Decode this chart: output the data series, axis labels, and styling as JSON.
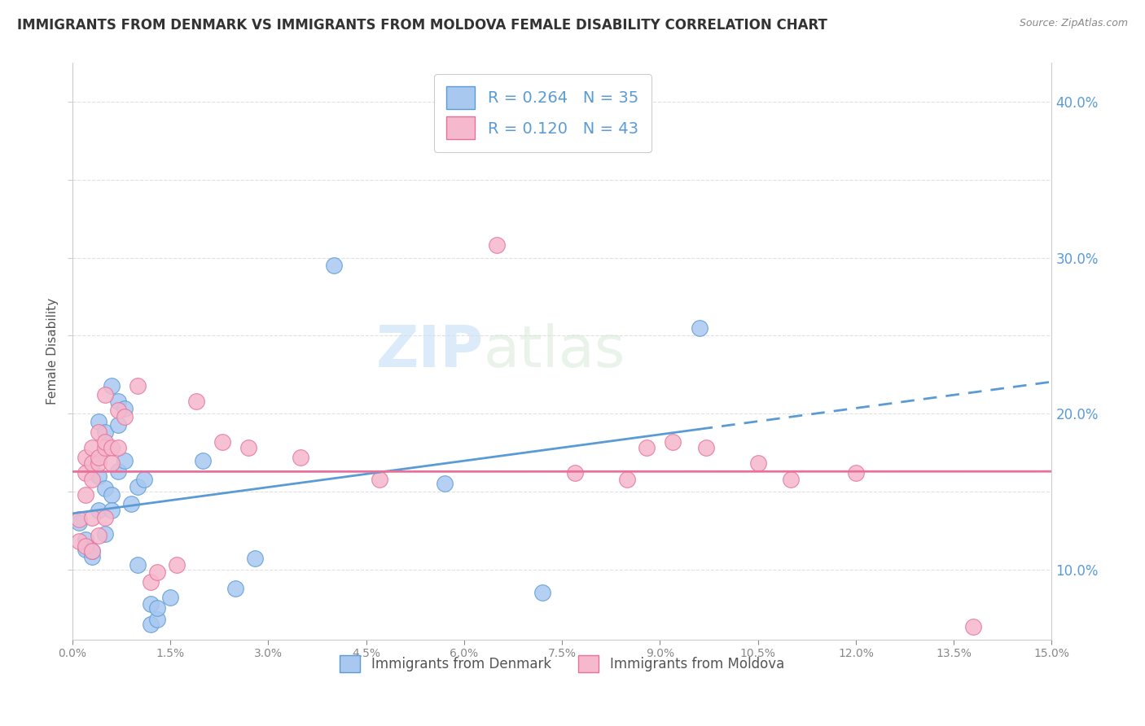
{
  "title": "IMMIGRANTS FROM DENMARK VS IMMIGRANTS FROM MOLDOVA FEMALE DISABILITY CORRELATION CHART",
  "source": "Source: ZipAtlas.com",
  "ylabel": "Female Disability",
  "xlim": [
    0.0,
    0.15
  ],
  "ylim": [
    0.055,
    0.425
  ],
  "denmark_scatter": [
    [
      0.001,
      0.13
    ],
    [
      0.002,
      0.119
    ],
    [
      0.002,
      0.113
    ],
    [
      0.003,
      0.108
    ],
    [
      0.003,
      0.112
    ],
    [
      0.004,
      0.195
    ],
    [
      0.004,
      0.138
    ],
    [
      0.004,
      0.16
    ],
    [
      0.005,
      0.123
    ],
    [
      0.005,
      0.152
    ],
    [
      0.005,
      0.188
    ],
    [
      0.006,
      0.218
    ],
    [
      0.006,
      0.148
    ],
    [
      0.006,
      0.138
    ],
    [
      0.007,
      0.208
    ],
    [
      0.007,
      0.193
    ],
    [
      0.007,
      0.163
    ],
    [
      0.008,
      0.203
    ],
    [
      0.008,
      0.17
    ],
    [
      0.009,
      0.142
    ],
    [
      0.01,
      0.153
    ],
    [
      0.01,
      0.103
    ],
    [
      0.011,
      0.158
    ],
    [
      0.012,
      0.078
    ],
    [
      0.012,
      0.065
    ],
    [
      0.013,
      0.068
    ],
    [
      0.013,
      0.075
    ],
    [
      0.015,
      0.082
    ],
    [
      0.02,
      0.17
    ],
    [
      0.025,
      0.088
    ],
    [
      0.028,
      0.107
    ],
    [
      0.04,
      0.295
    ],
    [
      0.057,
      0.155
    ],
    [
      0.072,
      0.085
    ],
    [
      0.096,
      0.255
    ]
  ],
  "moldova_scatter": [
    [
      0.001,
      0.118
    ],
    [
      0.001,
      0.132
    ],
    [
      0.002,
      0.115
    ],
    [
      0.002,
      0.148
    ],
    [
      0.002,
      0.162
    ],
    [
      0.002,
      0.172
    ],
    [
      0.003,
      0.112
    ],
    [
      0.003,
      0.133
    ],
    [
      0.003,
      0.158
    ],
    [
      0.003,
      0.178
    ],
    [
      0.003,
      0.168
    ],
    [
      0.004,
      0.122
    ],
    [
      0.004,
      0.168
    ],
    [
      0.004,
      0.172
    ],
    [
      0.004,
      0.188
    ],
    [
      0.005,
      0.133
    ],
    [
      0.005,
      0.178
    ],
    [
      0.005,
      0.182
    ],
    [
      0.005,
      0.212
    ],
    [
      0.006,
      0.178
    ],
    [
      0.006,
      0.168
    ],
    [
      0.007,
      0.178
    ],
    [
      0.007,
      0.202
    ],
    [
      0.008,
      0.198
    ],
    [
      0.01,
      0.218
    ],
    [
      0.012,
      0.092
    ],
    [
      0.013,
      0.098
    ],
    [
      0.016,
      0.103
    ],
    [
      0.019,
      0.208
    ],
    [
      0.023,
      0.182
    ],
    [
      0.027,
      0.178
    ],
    [
      0.035,
      0.172
    ],
    [
      0.047,
      0.158
    ],
    [
      0.065,
      0.308
    ],
    [
      0.077,
      0.162
    ],
    [
      0.085,
      0.158
    ],
    [
      0.088,
      0.178
    ],
    [
      0.092,
      0.182
    ],
    [
      0.097,
      0.178
    ],
    [
      0.105,
      0.168
    ],
    [
      0.11,
      0.158
    ],
    [
      0.12,
      0.162
    ],
    [
      0.138,
      0.063
    ]
  ],
  "denmark_color": "#A8C8F0",
  "moldova_color": "#F5B8CC",
  "denmark_line_color": "#5B9BD5",
  "moldova_line_color": "#E8709A",
  "denmark_R": 0.264,
  "denmark_N": 35,
  "moldova_R": 0.12,
  "moldova_N": 43,
  "watermark_zip": "ZIP",
  "watermark_atlas": "atlas",
  "title_fontsize": 12,
  "background_color": "#ffffff",
  "grid_color": "#e0e0e0",
  "yticks_right": [
    0.1,
    0.2,
    0.3,
    0.4
  ],
  "xticks": [
    0.0,
    0.015,
    0.03,
    0.045,
    0.06,
    0.075,
    0.09,
    0.105,
    0.12,
    0.135,
    0.15
  ]
}
